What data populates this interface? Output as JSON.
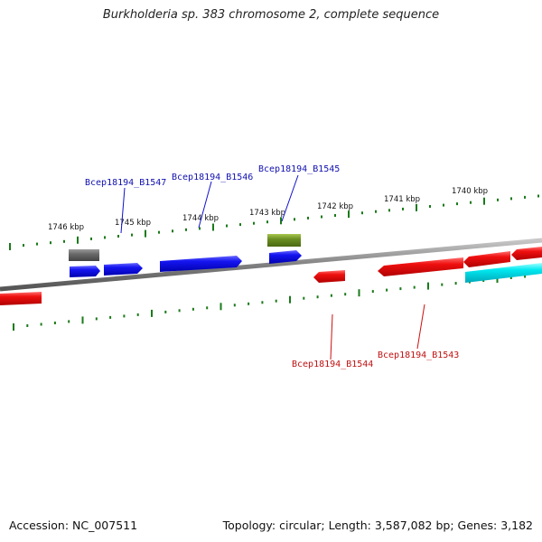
{
  "title": "Burkholderia sp. 383 chromosome 2, complete sequence",
  "footer": {
    "accession": "Accession: NC_007511",
    "summary": "Topology: circular; Length: 3,587,082 bp; Genes: 3,182"
  },
  "colors": {
    "forward_gene": "#1010ee",
    "reverse_gene": "#ee1010",
    "rna": "#00e5ee",
    "pseudo": "#666666",
    "other": "#6b8e23",
    "tick": "#1a7a1a",
    "backbone": "#888888"
  },
  "scale_labels": [
    {
      "text": "1746 kbp"
    },
    {
      "text": "1745 kbp"
    },
    {
      "text": "1744 kbp"
    },
    {
      "text": "1743 kbp"
    },
    {
      "text": "1742 kbp"
    },
    {
      "text": "1741 kbp"
    },
    {
      "text": "1740 kbp"
    }
  ],
  "gene_labels": [
    {
      "text": "Bcep18194_B1547",
      "strand": "forward"
    },
    {
      "text": "Bcep18194_B1546",
      "strand": "forward"
    },
    {
      "text": "Bcep18194_B1545",
      "strand": "forward"
    },
    {
      "text": "Bcep18194_B1544",
      "strand": "reverse"
    },
    {
      "text": "Bcep18194_B1543",
      "strand": "reverse"
    }
  ]
}
